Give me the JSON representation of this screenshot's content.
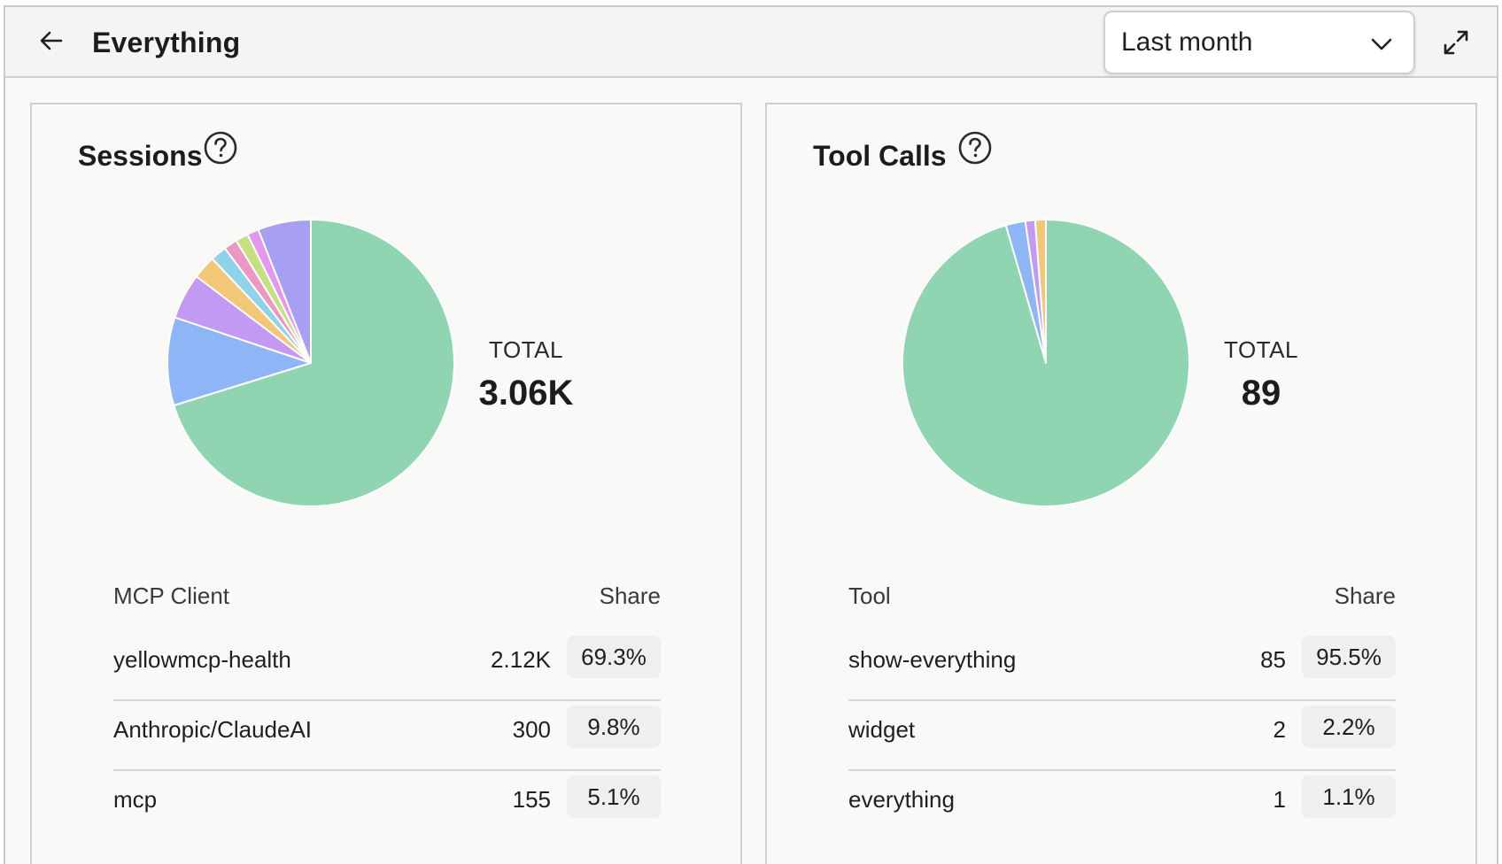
{
  "header": {
    "title": "Everything",
    "range_selected": "Last month"
  },
  "icons": [
    "arrow-left-icon",
    "chevron-down-icon",
    "expand-icon",
    "help-icon"
  ],
  "colors": {
    "slice_green": "#8fd5b1",
    "slice_blue": "#8eb5f5",
    "slice_purple": "#c29af3",
    "slice_orange": "#f4c677",
    "slice_cyan": "#8fd3ea",
    "slice_pink": "#ee96c4",
    "slice_lime": "#c6e07f",
    "slice_magenta": "#e596ef",
    "slice_lavender": "#a7a0f2"
  },
  "sessions": {
    "title": "Sessions",
    "total_label": "TOTAL",
    "total_value": "3.06K",
    "col_name": "MCP Client",
    "col_share": "Share",
    "rows": [
      {
        "name": "yellowmcp-health",
        "count": "2.12K",
        "share": "69.3%"
      },
      {
        "name": "Anthropic/ClaudeAI",
        "count": "300",
        "share": "9.8%"
      },
      {
        "name": "mcp",
        "count": "155",
        "share": "5.1%"
      }
    ]
  },
  "tool_calls": {
    "title": "Tool Calls",
    "total_label": "TOTAL",
    "total_value": "89",
    "col_name": "Tool",
    "col_share": "Share",
    "rows": [
      {
        "name": "show-everything",
        "count": "85",
        "share": "95.5%"
      },
      {
        "name": "widget",
        "count": "2",
        "share": "2.2%"
      },
      {
        "name": "everything",
        "count": "1",
        "share": "1.1%"
      }
    ]
  },
  "chart_data": [
    {
      "type": "pie",
      "values": [
        69.3,
        9.8,
        5.1,
        2.6,
        1.8,
        1.5,
        1.4,
        1.3,
        5.9
      ],
      "colors": [
        "#8fd5b1",
        "#8eb5f5",
        "#c29af3",
        "#f4c677",
        "#8fd3ea",
        "#ee96c4",
        "#c6e07f",
        "#e596ef",
        "#a7a0f2"
      ]
    },
    {
      "type": "pie",
      "values": [
        95.5,
        2.2,
        1.1,
        1.2
      ],
      "colors": [
        "#8fd5b1",
        "#8eb5f5",
        "#c29af3",
        "#f4c677"
      ]
    }
  ]
}
